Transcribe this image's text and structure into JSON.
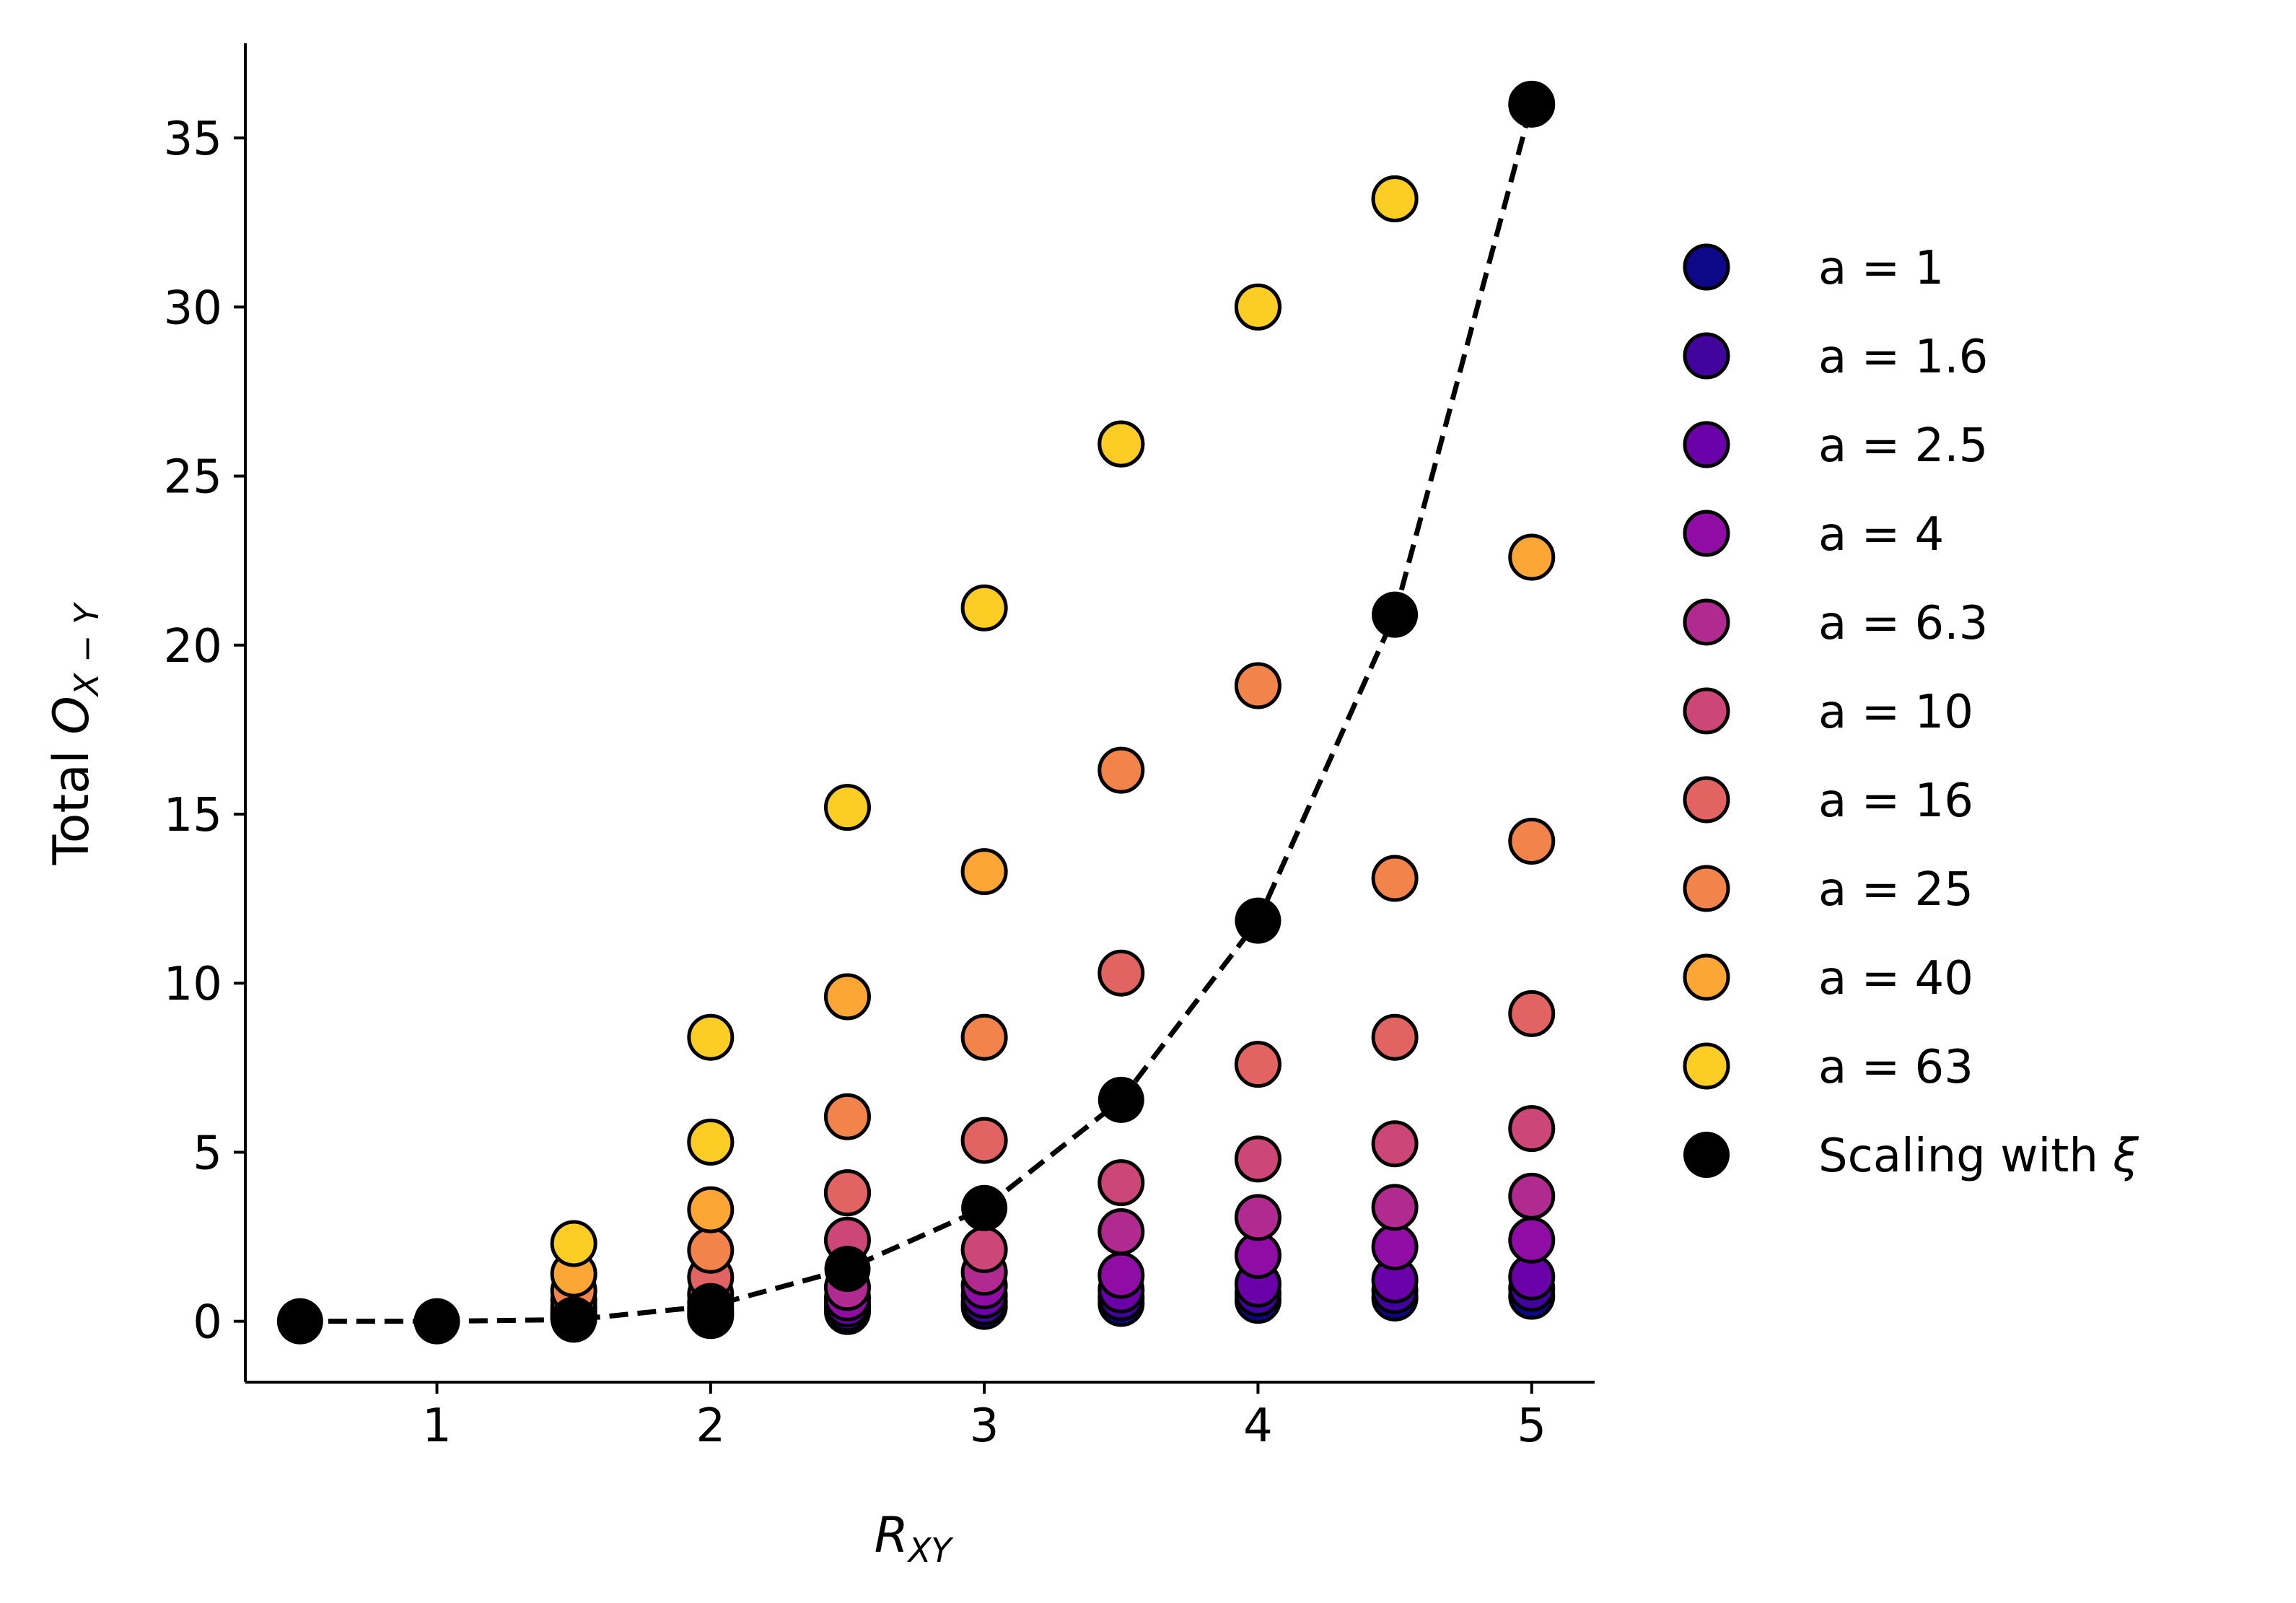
{
  "chart_data": {
    "type": "scatter",
    "title": "",
    "xlabel": "R",
    "xlabel_sub": "XY",
    "ylabel_prefix": "Total ",
    "ylabel_symbol": "O",
    "ylabel_sub": "X − Y",
    "xlim": [
      0.3,
      5.23
    ],
    "ylim": [
      -1.8,
      37.8
    ],
    "xticks": [
      1,
      2,
      3,
      4,
      5
    ],
    "yticks": [
      0,
      5,
      10,
      15,
      20,
      25,
      30,
      35
    ],
    "grid": false,
    "legend_position": "right",
    "x": [
      1.5,
      2,
      2.5,
      3,
      3.5,
      4,
      4.5,
      5
    ],
    "series": [
      {
        "name": "a = 1",
        "color": "#0d0887",
        "values": [
          0.09,
          0.17,
          0.29,
          0.44,
          0.53,
          0.62,
          0.69,
          0.74
        ]
      },
      {
        "name": "a = 1.6",
        "color": "#41049d",
        "values": [
          0.12,
          0.22,
          0.38,
          0.57,
          0.7,
          0.83,
          0.91,
          0.98
        ]
      },
      {
        "name": "a = 2.5",
        "color": "#6a00a8",
        "values": [
          0.16,
          0.3,
          0.51,
          0.77,
          0.93,
          1.1,
          1.22,
          1.31
        ]
      },
      {
        "name": "a = 4",
        "color": "#8f0da4",
        "values": [
          0.22,
          0.4,
          0.69,
          1.05,
          1.36,
          1.95,
          2.2,
          2.4
        ]
      },
      {
        "name": "a = 6.3",
        "color": "#b12a90",
        "values": [
          0.3,
          0.55,
          1.0,
          1.45,
          2.65,
          3.07,
          3.37,
          3.7
        ]
      },
      {
        "name": "a = 10",
        "color": "#cc4778",
        "values": [
          0.42,
          0.8,
          2.4,
          2.12,
          4.1,
          4.8,
          5.25,
          5.7
        ]
      },
      {
        "name": "a = 16",
        "color": "#e16462",
        "values": [
          0.62,
          1.3,
          3.8,
          5.35,
          10.3,
          7.6,
          8.4,
          9.1
        ]
      },
      {
        "name": "a = 25",
        "color": "#f2844b",
        "values": [
          0.9,
          2.1,
          6.05,
          8.4,
          16.3,
          18.8,
          13.1,
          14.2
        ]
      },
      {
        "name": "a = 40",
        "color": "#fca636",
        "values": [
          1.4,
          3.3,
          9.6,
          13.3,
          25.95,
          30.0,
          33.2,
          22.6
        ]
      },
      {
        "name": "a = 63",
        "color": "#fcce25",
        "values": [
          2.3,
          5.3,
          15.2,
          21.1,
          25.95,
          30.0,
          33.2,
          36.0
        ]
      }
    ],
    "extra_points": [
      {
        "series": "a = 40",
        "x": 2,
        "y": 5.3
      },
      {
        "series": "a = 63",
        "x": 2,
        "y": 8.4
      },
      {
        "series": "a = 16",
        "x": 2.5,
        "y": 3.8
      }
    ],
    "scaling": {
      "name": "Scaling with ",
      "symbol": "ξ",
      "color": "#000000",
      "x": [
        0.5,
        1,
        1.5,
        2,
        2.5,
        3,
        3.5,
        4,
        4.5,
        5
      ],
      "y": [
        0.0,
        0.0,
        0.05,
        0.45,
        1.55,
        3.35,
        6.55,
        11.85,
        20.9,
        36.0
      ]
    }
  }
}
